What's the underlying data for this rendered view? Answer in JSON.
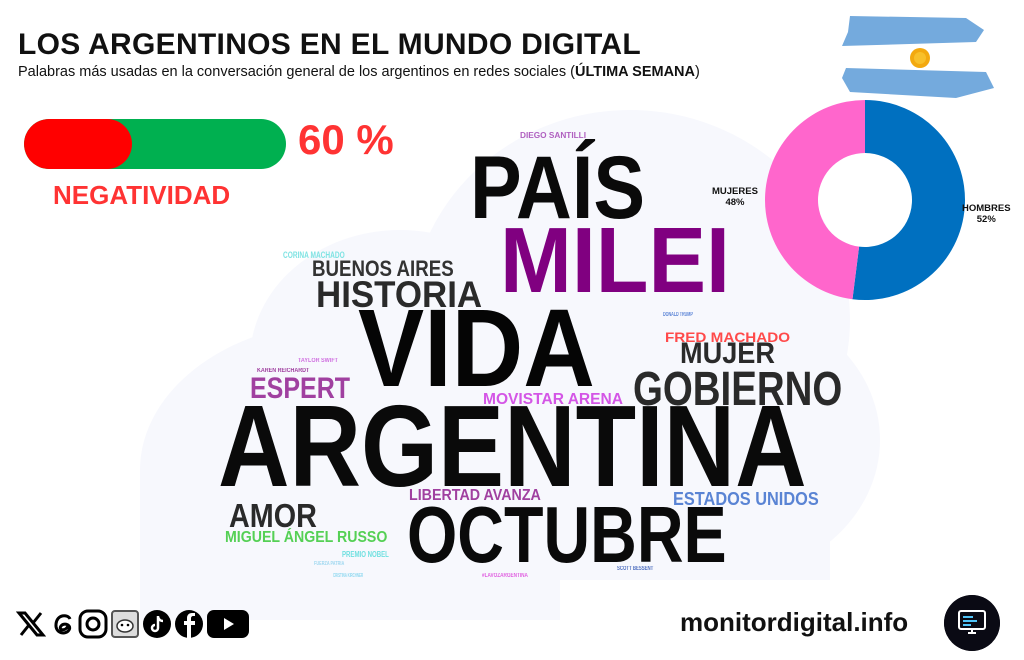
{
  "header": {
    "title": "LOS ARGENTINOS EN EL MUNDO DIGITAL",
    "subtitle_pre": "Palabras más usadas en la conversación general de los argentinos en redes sociales (",
    "subtitle_bold": "ÚLTIMA SEMANA",
    "subtitle_post": ")"
  },
  "flag_icon": "argentina-flag",
  "negativity": {
    "percent": 60,
    "label_value": "60 %",
    "label": "NEGATIVIDAD",
    "colors": {
      "negative": "#ff0000",
      "positive": "#00b050"
    }
  },
  "gender": {
    "type": "donut",
    "slices": [
      {
        "name": "HOMBRES",
        "value": 52,
        "label": "52%",
        "color": "#0070c0"
      },
      {
        "name": "MUJERES",
        "value": 48,
        "label": "48%",
        "color": "#ff66cc"
      }
    ]
  },
  "wordcloud": [
    {
      "text": "DIEGO SANTILLI",
      "color": "#b060c0"
    },
    {
      "text": "PAÍS",
      "color": "#0a0a0a"
    },
    {
      "text": "MILEI",
      "color": "#800080"
    },
    {
      "text": "CORINA MACHADO",
      "color": "#7fe3e3"
    },
    {
      "text": "BUENOS AIRES",
      "color": "#333333"
    },
    {
      "text": "HISTORIA",
      "color": "#2a2a2a"
    },
    {
      "text": "VIDA",
      "color": "#050505"
    },
    {
      "text": "DONALD TRUMP",
      "color": "#5b84d6"
    },
    {
      "text": "FRED MACHADO",
      "color": "#ff4a4a"
    },
    {
      "text": "MUJER",
      "color": "#2a2a2a"
    },
    {
      "text": "TAYLOR SWIFT",
      "color": "#d070e0"
    },
    {
      "text": "KAREN REICHARDT",
      "color": "#a040a0"
    },
    {
      "text": "ESPERT",
      "color": "#a040a0"
    },
    {
      "text": "MOVISTAR ARENA",
      "color": "#d456e6"
    },
    {
      "text": "GOBIERNO",
      "color": "#2a2a2a"
    },
    {
      "text": "ARGENTINA",
      "color": "#0a0a0a"
    },
    {
      "text": "LIBERTAD AVANZA",
      "color": "#a040a0"
    },
    {
      "text": "ESTADOS UNIDOS",
      "color": "#5a84d4"
    },
    {
      "text": "AMOR",
      "color": "#2a2a2a"
    },
    {
      "text": "OCTUBRE",
      "color": "#0a0a0a"
    },
    {
      "text": "MIGUEL ÁNGEL RUSSO",
      "color": "#55d055"
    },
    {
      "text": "PREMIO NOBEL",
      "color": "#70e0e0"
    },
    {
      "text": "FUERZA PATRIA",
      "color": "#a0d8f0"
    },
    {
      "text": "SCOTT BESSENT",
      "color": "#5070c0"
    },
    {
      "text": "CRISTINA KIRCHNER",
      "color": "#90d8f0"
    },
    {
      "text": "#LAVOZARGENTINA",
      "color": "#e060e0"
    }
  ],
  "social_icons": [
    "x-icon",
    "threads-icon",
    "instagram-icon",
    "reddit-icon",
    "tiktok-icon",
    "facebook-icon",
    "youtube-icon"
  ],
  "footer": {
    "site": "monitordigital.info",
    "monitor_icon": "monitor-icon"
  }
}
